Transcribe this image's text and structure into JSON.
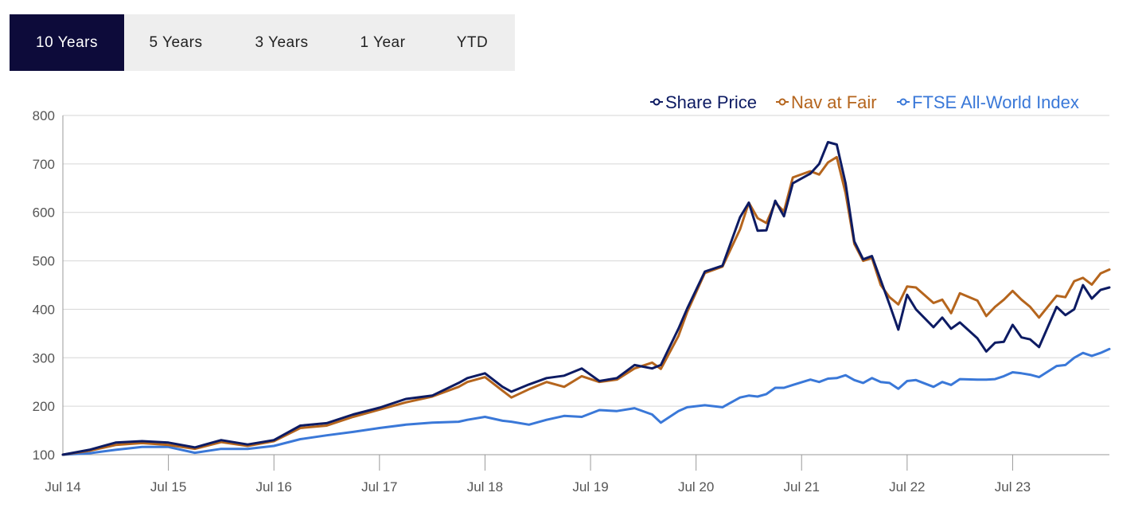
{
  "tabs": [
    {
      "label": "10 Years",
      "active": true
    },
    {
      "label": "5 Years",
      "active": false
    },
    {
      "label": "3 Years",
      "active": false
    },
    {
      "label": "1 Year",
      "active": false
    },
    {
      "label": "YTD",
      "active": false
    }
  ],
  "chart_data": {
    "type": "line",
    "title": "",
    "xlabel": "",
    "ylabel": "",
    "ylim": [
      100,
      800
    ],
    "y_ticks": [
      100,
      200,
      300,
      400,
      500,
      600,
      700,
      800
    ],
    "x_start": "2014-07",
    "x_end": "2024-06",
    "x_tick_labels": [
      "Jul 14",
      "Jul 15",
      "Jul 16",
      "Jul 17",
      "Jul 18",
      "Jul 19",
      "Jul 20",
      "Jul 21",
      "Jul 22",
      "Jul 23"
    ],
    "grid": true,
    "legend_position": "top-right",
    "series": [
      {
        "name": "Share Price",
        "color": "#0d1b63",
        "points": [
          [
            "2014-07",
            100
          ],
          [
            "2014-10",
            110
          ],
          [
            "2015-01",
            125
          ],
          [
            "2015-04",
            128
          ],
          [
            "2015-07",
            125
          ],
          [
            "2015-10",
            115
          ],
          [
            "2016-01",
            130
          ],
          [
            "2016-04",
            121
          ],
          [
            "2016-07",
            130
          ],
          [
            "2016-10",
            160
          ],
          [
            "2017-01",
            165
          ],
          [
            "2017-04",
            183
          ],
          [
            "2017-07",
            197
          ],
          [
            "2017-10",
            215
          ],
          [
            "2018-01",
            222
          ],
          [
            "2018-04",
            248
          ],
          [
            "2018-05",
            258
          ],
          [
            "2018-07",
            268
          ],
          [
            "2018-09",
            240
          ],
          [
            "2018-10",
            230
          ],
          [
            "2018-12",
            245
          ],
          [
            "2019-02",
            258
          ],
          [
            "2019-04",
            263
          ],
          [
            "2019-06",
            278
          ],
          [
            "2019-08",
            252
          ],
          [
            "2019-10",
            258
          ],
          [
            "2019-12",
            285
          ],
          [
            "2020-02",
            278
          ],
          [
            "2020-03",
            285
          ],
          [
            "2020-05",
            360
          ],
          [
            "2020-06",
            402
          ],
          [
            "2020-08",
            478
          ],
          [
            "2020-10",
            490
          ],
          [
            "2020-12",
            590
          ],
          [
            "2021-01",
            620
          ],
          [
            "2021-02",
            562
          ],
          [
            "2021-03",
            563
          ],
          [
            "2021-04",
            624
          ],
          [
            "2021-05",
            592
          ],
          [
            "2021-06",
            660
          ],
          [
            "2021-08",
            680
          ],
          [
            "2021-09",
            700
          ],
          [
            "2021-10",
            745
          ],
          [
            "2021-11",
            740
          ],
          [
            "2021-12",
            660
          ],
          [
            "2022-01",
            540
          ],
          [
            "2022-02",
            503
          ],
          [
            "2022-03",
            510
          ],
          [
            "2022-04",
            460
          ],
          [
            "2022-05",
            410
          ],
          [
            "2022-06",
            358
          ],
          [
            "2022-07",
            430
          ],
          [
            "2022-08",
            400
          ],
          [
            "2022-10",
            363
          ],
          [
            "2022-11",
            383
          ],
          [
            "2022-12",
            360
          ],
          [
            "2023-01",
            373
          ],
          [
            "2023-03",
            340
          ],
          [
            "2023-04",
            313
          ],
          [
            "2023-05",
            331
          ],
          [
            "2023-06",
            333
          ],
          [
            "2023-07",
            368
          ],
          [
            "2023-08",
            342
          ],
          [
            "2023-09",
            338
          ],
          [
            "2023-10",
            322
          ],
          [
            "2023-12",
            405
          ],
          [
            "2024-01",
            388
          ],
          [
            "2024-02",
            400
          ],
          [
            "2024-03",
            450
          ],
          [
            "2024-04",
            422
          ],
          [
            "2024-05",
            440
          ],
          [
            "2024-06",
            445
          ]
        ]
      },
      {
        "name": "Nav at Fair",
        "color": "#b5651d",
        "points": [
          [
            "2014-07",
            100
          ],
          [
            "2014-10",
            108
          ],
          [
            "2015-01",
            120
          ],
          [
            "2015-04",
            124
          ],
          [
            "2015-07",
            120
          ],
          [
            "2015-10",
            112
          ],
          [
            "2016-01",
            126
          ],
          [
            "2016-04",
            118
          ],
          [
            "2016-07",
            128
          ],
          [
            "2016-10",
            155
          ],
          [
            "2017-01",
            160
          ],
          [
            "2017-04",
            178
          ],
          [
            "2017-07",
            193
          ],
          [
            "2017-10",
            208
          ],
          [
            "2018-01",
            220
          ],
          [
            "2018-04",
            240
          ],
          [
            "2018-05",
            250
          ],
          [
            "2018-07",
            260
          ],
          [
            "2018-09",
            232
          ],
          [
            "2018-10",
            218
          ],
          [
            "2018-12",
            235
          ],
          [
            "2019-02",
            250
          ],
          [
            "2019-04",
            240
          ],
          [
            "2019-06",
            262
          ],
          [
            "2019-08",
            250
          ],
          [
            "2019-10",
            255
          ],
          [
            "2019-12",
            278
          ],
          [
            "2020-02",
            290
          ],
          [
            "2020-03",
            277
          ],
          [
            "2020-05",
            345
          ],
          [
            "2020-06",
            395
          ],
          [
            "2020-08",
            475
          ],
          [
            "2020-10",
            488
          ],
          [
            "2020-12",
            565
          ],
          [
            "2021-01",
            620
          ],
          [
            "2021-02",
            588
          ],
          [
            "2021-03",
            578
          ],
          [
            "2021-04",
            620
          ],
          [
            "2021-05",
            602
          ],
          [
            "2021-06",
            672
          ],
          [
            "2021-08",
            685
          ],
          [
            "2021-09",
            678
          ],
          [
            "2021-10",
            703
          ],
          [
            "2021-11",
            714
          ],
          [
            "2021-12",
            640
          ],
          [
            "2022-01",
            535
          ],
          [
            "2022-02",
            500
          ],
          [
            "2022-03",
            506
          ],
          [
            "2022-04",
            450
          ],
          [
            "2022-05",
            425
          ],
          [
            "2022-06",
            410
          ],
          [
            "2022-07",
            447
          ],
          [
            "2022-08",
            445
          ],
          [
            "2022-10",
            413
          ],
          [
            "2022-11",
            420
          ],
          [
            "2022-12",
            392
          ],
          [
            "2023-01",
            433
          ],
          [
            "2023-03",
            418
          ],
          [
            "2023-04",
            386
          ],
          [
            "2023-05",
            405
          ],
          [
            "2023-06",
            420
          ],
          [
            "2023-07",
            438
          ],
          [
            "2023-08",
            420
          ],
          [
            "2023-09",
            405
          ],
          [
            "2023-10",
            383
          ],
          [
            "2023-12",
            428
          ],
          [
            "2024-01",
            425
          ],
          [
            "2024-02",
            458
          ],
          [
            "2024-03",
            465
          ],
          [
            "2024-04",
            451
          ],
          [
            "2024-05",
            474
          ],
          [
            "2024-06",
            482
          ]
        ]
      },
      {
        "name": "FTSE All-World Index",
        "color": "#3a78d8",
        "points": [
          [
            "2014-07",
            100
          ],
          [
            "2014-10",
            103
          ],
          [
            "2015-01",
            110
          ],
          [
            "2015-04",
            116
          ],
          [
            "2015-07",
            116
          ],
          [
            "2015-10",
            104
          ],
          [
            "2016-01",
            112
          ],
          [
            "2016-04",
            112
          ],
          [
            "2016-07",
            118
          ],
          [
            "2016-10",
            132
          ],
          [
            "2017-01",
            140
          ],
          [
            "2017-04",
            147
          ],
          [
            "2017-07",
            155
          ],
          [
            "2017-10",
            162
          ],
          [
            "2018-01",
            166
          ],
          [
            "2018-04",
            168
          ],
          [
            "2018-05",
            172
          ],
          [
            "2018-07",
            178
          ],
          [
            "2018-09",
            170
          ],
          [
            "2018-10",
            168
          ],
          [
            "2018-12",
            162
          ],
          [
            "2019-02",
            172
          ],
          [
            "2019-04",
            180
          ],
          [
            "2019-06",
            178
          ],
          [
            "2019-08",
            192
          ],
          [
            "2019-10",
            190
          ],
          [
            "2019-12",
            196
          ],
          [
            "2020-02",
            183
          ],
          [
            "2020-03",
            166
          ],
          [
            "2020-05",
            190
          ],
          [
            "2020-06",
            198
          ],
          [
            "2020-08",
            202
          ],
          [
            "2020-10",
            198
          ],
          [
            "2020-12",
            218
          ],
          [
            "2021-01",
            222
          ],
          [
            "2021-02",
            220
          ],
          [
            "2021-03",
            225
          ],
          [
            "2021-04",
            238
          ],
          [
            "2021-05",
            238
          ],
          [
            "2021-06",
            244
          ],
          [
            "2021-08",
            255
          ],
          [
            "2021-09",
            250
          ],
          [
            "2021-10",
            257
          ],
          [
            "2021-11",
            258
          ],
          [
            "2021-12",
            264
          ],
          [
            "2022-01",
            254
          ],
          [
            "2022-02",
            248
          ],
          [
            "2022-03",
            258
          ],
          [
            "2022-04",
            250
          ],
          [
            "2022-05",
            248
          ],
          [
            "2022-06",
            236
          ],
          [
            "2022-07",
            252
          ],
          [
            "2022-08",
            254
          ],
          [
            "2022-10",
            240
          ],
          [
            "2022-11",
            250
          ],
          [
            "2022-12",
            244
          ],
          [
            "2023-01",
            256
          ],
          [
            "2023-03",
            255
          ],
          [
            "2023-04",
            255
          ],
          [
            "2023-05",
            256
          ],
          [
            "2023-06",
            262
          ],
          [
            "2023-07",
            270
          ],
          [
            "2023-08",
            268
          ],
          [
            "2023-09",
            265
          ],
          [
            "2023-10",
            260
          ],
          [
            "2023-12",
            283
          ],
          [
            "2024-01",
            285
          ],
          [
            "2024-02",
            300
          ],
          [
            "2024-03",
            310
          ],
          [
            "2024-04",
            304
          ],
          [
            "2024-05",
            310
          ],
          [
            "2024-06",
            318
          ]
        ]
      }
    ]
  }
}
